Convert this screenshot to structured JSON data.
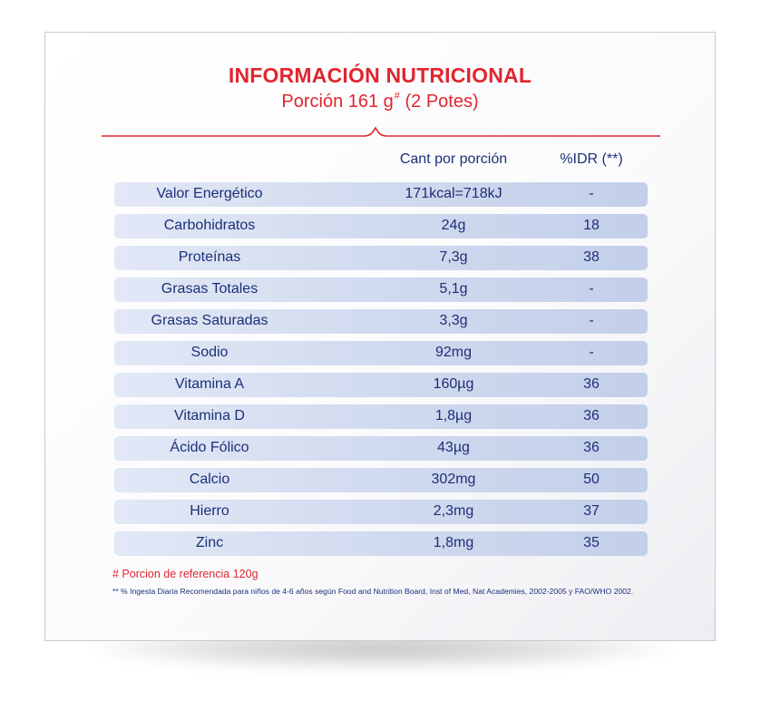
{
  "panel": {
    "title": "INFORMACIÓN NUTRICIONAL",
    "subtitle_main": "Porción 161 g",
    "subtitle_mark": "#",
    "subtitle_tail": " (2 Potes)"
  },
  "table": {
    "headers": {
      "qty": "Cant por porción",
      "idr": "%IDR (**)"
    },
    "rows": [
      {
        "nutrient": "Valor Energético",
        "qty": "171kcal=718kJ",
        "idr": "-"
      },
      {
        "nutrient": "Carbohidratos",
        "qty": "24g",
        "idr": "18"
      },
      {
        "nutrient": "Proteínas",
        "qty": "7,3g",
        "idr": "38"
      },
      {
        "nutrient": "Grasas Totales",
        "qty": "5,1g",
        "idr": "-"
      },
      {
        "nutrient": "Grasas Saturadas",
        "qty": "3,3g",
        "idr": "-"
      },
      {
        "nutrient": "Sodio",
        "qty": "92mg",
        "idr": "-"
      },
      {
        "nutrient": "Vitamina A",
        "qty": "160µg",
        "idr": "36"
      },
      {
        "nutrient": "Vitamina D",
        "qty": "1,8µg",
        "idr": "36"
      },
      {
        "nutrient": "Ácido Fólico",
        "qty": "43µg",
        "idr": "36"
      },
      {
        "nutrient": "Calcio",
        "qty": "302mg",
        "idr": "50"
      },
      {
        "nutrient": "Hierro",
        "qty": "2,3mg",
        "idr": "37"
      },
      {
        "nutrient": "Zinc",
        "qty": "1,8mg",
        "idr": "35"
      }
    ]
  },
  "footnotes": {
    "reference": "# Porcion de referencia 120g",
    "idr_note": "** % Ingesta Diaria Recomendada para niños de 4-6 años según Food and Nutrition Board, Inst of Med, Nat Academies, 2002-2005 y FAO/WHO 2002."
  },
  "colors": {
    "accent_red": "#e0262f",
    "text_navy": "#1d2f77",
    "row_fill": "#cfd9ee"
  }
}
